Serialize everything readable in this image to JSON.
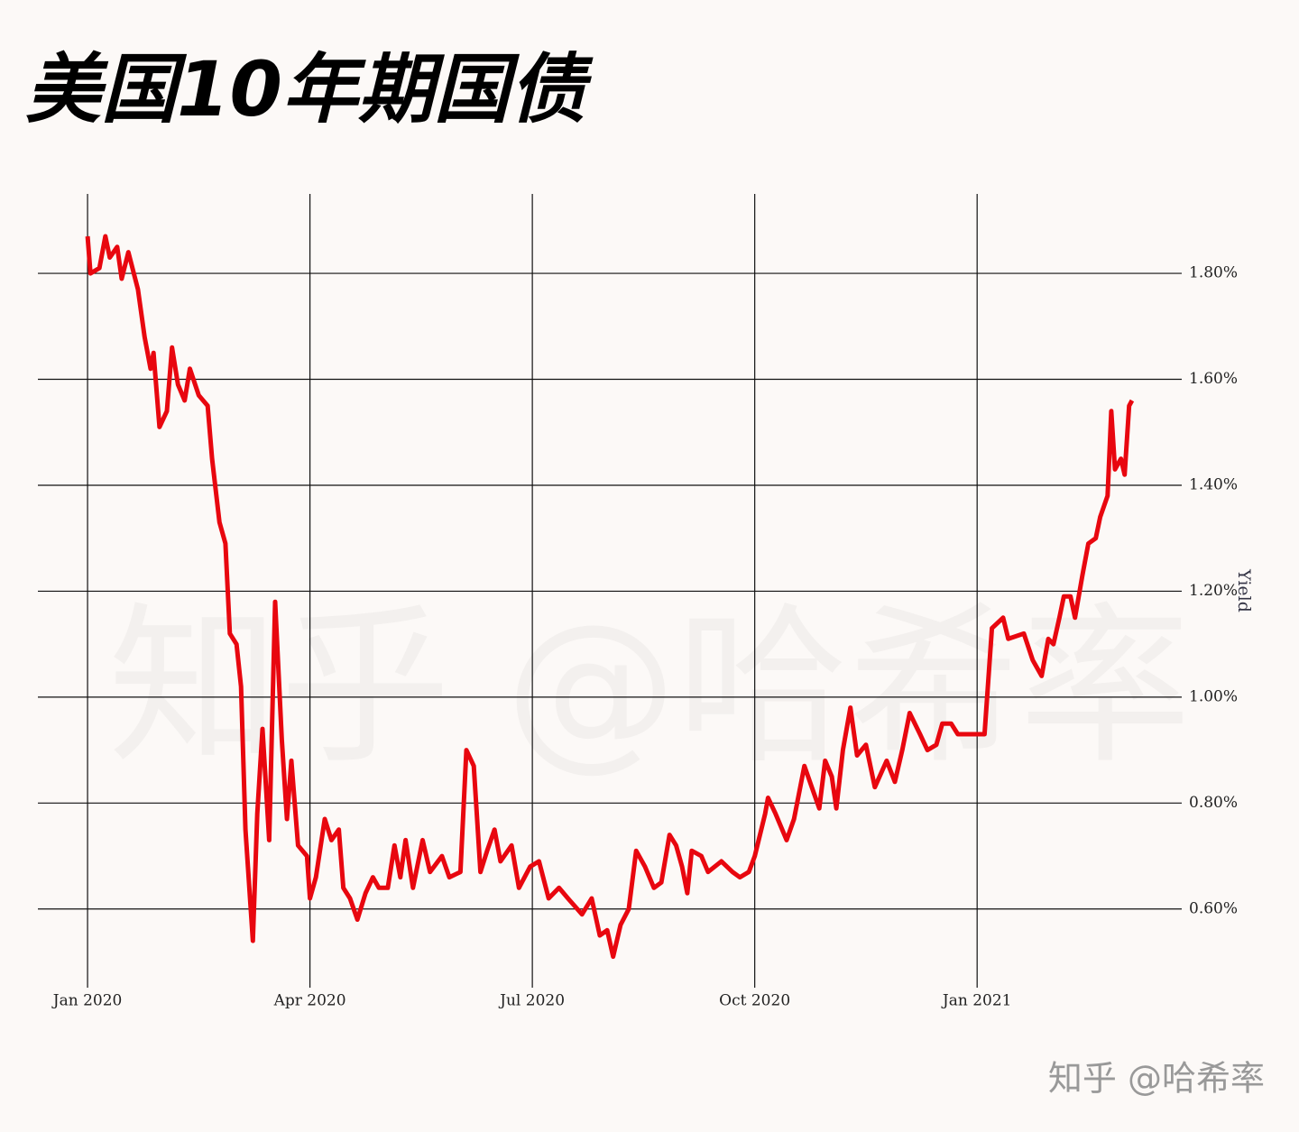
{
  "chart_data": {
    "type": "line",
    "title": "美国10年期国债",
    "y_label": "Yield",
    "watermark": "知乎 @哈希率",
    "source_label": "知乎 @哈希率",
    "color": "#e8070f",
    "grid": true,
    "xlim": [
      -0.67,
      14.76
    ],
    "ylim": [
      0.46,
      1.95
    ],
    "xticks": [
      {
        "value": 0,
        "label": "Jan 2020"
      },
      {
        "value": 3,
        "label": "Apr 2020"
      },
      {
        "value": 6,
        "label": "Jul 2020"
      },
      {
        "value": 9,
        "label": "Oct 2020"
      },
      {
        "value": 12,
        "label": "Jan 2021"
      }
    ],
    "yticks": [
      {
        "value": 0.6,
        "label": "0.60%"
      },
      {
        "value": 0.8,
        "label": "0.80%"
      },
      {
        "value": 1.0,
        "label": "1.00%"
      },
      {
        "value": 1.2,
        "label": "1.20%"
      },
      {
        "value": 1.4,
        "label": "1.40%"
      },
      {
        "value": 1.6,
        "label": "1.60%"
      },
      {
        "value": 1.8,
        "label": "1.80%"
      }
    ],
    "x": [
      0,
      0.04,
      0.16,
      0.24,
      0.3,
      0.4,
      0.46,
      0.55,
      0.68,
      0.77,
      0.85,
      0.89,
      0.97,
      1.07,
      1.14,
      1.22,
      1.31,
      1.38,
      1.5,
      1.62,
      1.68,
      1.78,
      1.86,
      1.92,
      2.01,
      2.07,
      2.13,
      2.23,
      2.29,
      2.36,
      2.45,
      2.53,
      2.62,
      2.69,
      2.75,
      2.84,
      2.96,
      3.0,
      3.08,
      3.2,
      3.29,
      3.39,
      3.45,
      3.54,
      3.64,
      3.75,
      3.85,
      3.93,
      4.05,
      4.14,
      4.22,
      4.29,
      4.39,
      4.52,
      4.62,
      4.78,
      4.88,
      5.03,
      5.11,
      5.21,
      5.3,
      5.39,
      5.49,
      5.57,
      5.72,
      5.82,
      5.97,
      6.09,
      6.22,
      6.36,
      6.48,
      6.67,
      6.8,
      6.91,
      7.01,
      7.09,
      7.19,
      7.3,
      7.4,
      7.52,
      7.64,
      7.74,
      7.85,
      7.94,
      8.02,
      8.09,
      8.15,
      8.28,
      8.37,
      8.55,
      8.7,
      8.8,
      8.92,
      9.0,
      9.14,
      9.18,
      9.28,
      9.43,
      9.53,
      9.67,
      9.77,
      9.87,
      9.95,
      10.04,
      10.1,
      10.19,
      10.29,
      10.38,
      10.5,
      10.62,
      10.78,
      10.89,
      10.99,
      11.09,
      11.23,
      11.33,
      11.45,
      11.53,
      11.65,
      11.74,
      11.84,
      11.96,
      12.1,
      12.2,
      12.35,
      12.42,
      12.63,
      12.75,
      12.87,
      12.96,
      13.03,
      13.11,
      13.17,
      13.26,
      13.32,
      13.42,
      13.5,
      13.6,
      13.66,
      13.76,
      13.81,
      13.86,
      13.94,
      13.99,
      14.05,
      14.09
    ],
    "values": [
      1.87,
      1.8,
      1.81,
      1.87,
      1.83,
      1.85,
      1.79,
      1.84,
      1.77,
      1.68,
      1.62,
      1.65,
      1.51,
      1.54,
      1.66,
      1.59,
      1.56,
      1.62,
      1.57,
      1.55,
      1.45,
      1.33,
      1.29,
      1.12,
      1.1,
      1.02,
      0.75,
      0.54,
      0.78,
      0.94,
      0.73,
      1.18,
      0.92,
      0.77,
      0.88,
      0.72,
      0.7,
      0.62,
      0.66,
      0.77,
      0.73,
      0.75,
      0.64,
      0.62,
      0.58,
      0.63,
      0.66,
      0.64,
      0.64,
      0.72,
      0.66,
      0.73,
      0.64,
      0.73,
      0.67,
      0.7,
      0.66,
      0.67,
      0.9,
      0.87,
      0.67,
      0.71,
      0.75,
      0.69,
      0.72,
      0.64,
      0.68,
      0.69,
      0.62,
      0.64,
      0.62,
      0.59,
      0.62,
      0.55,
      0.56,
      0.51,
      0.57,
      0.6,
      0.71,
      0.68,
      0.64,
      0.65,
      0.74,
      0.72,
      0.68,
      0.63,
      0.71,
      0.7,
      0.67,
      0.69,
      0.67,
      0.66,
      0.67,
      0.7,
      0.78,
      0.81,
      0.78,
      0.73,
      0.77,
      0.87,
      0.83,
      0.79,
      0.88,
      0.85,
      0.79,
      0.9,
      0.98,
      0.89,
      0.91,
      0.83,
      0.88,
      0.84,
      0.9,
      0.97,
      0.93,
      0.9,
      0.91,
      0.95,
      0.95,
      0.93,
      0.93,
      0.93,
      0.93,
      1.13,
      1.15,
      1.11,
      1.12,
      1.07,
      1.04,
      1.11,
      1.1,
      1.15,
      1.19,
      1.19,
      1.15,
      1.23,
      1.29,
      1.3,
      1.34,
      1.38,
      1.54,
      1.43,
      1.45,
      1.42,
      1.55,
      1.56
    ]
  }
}
